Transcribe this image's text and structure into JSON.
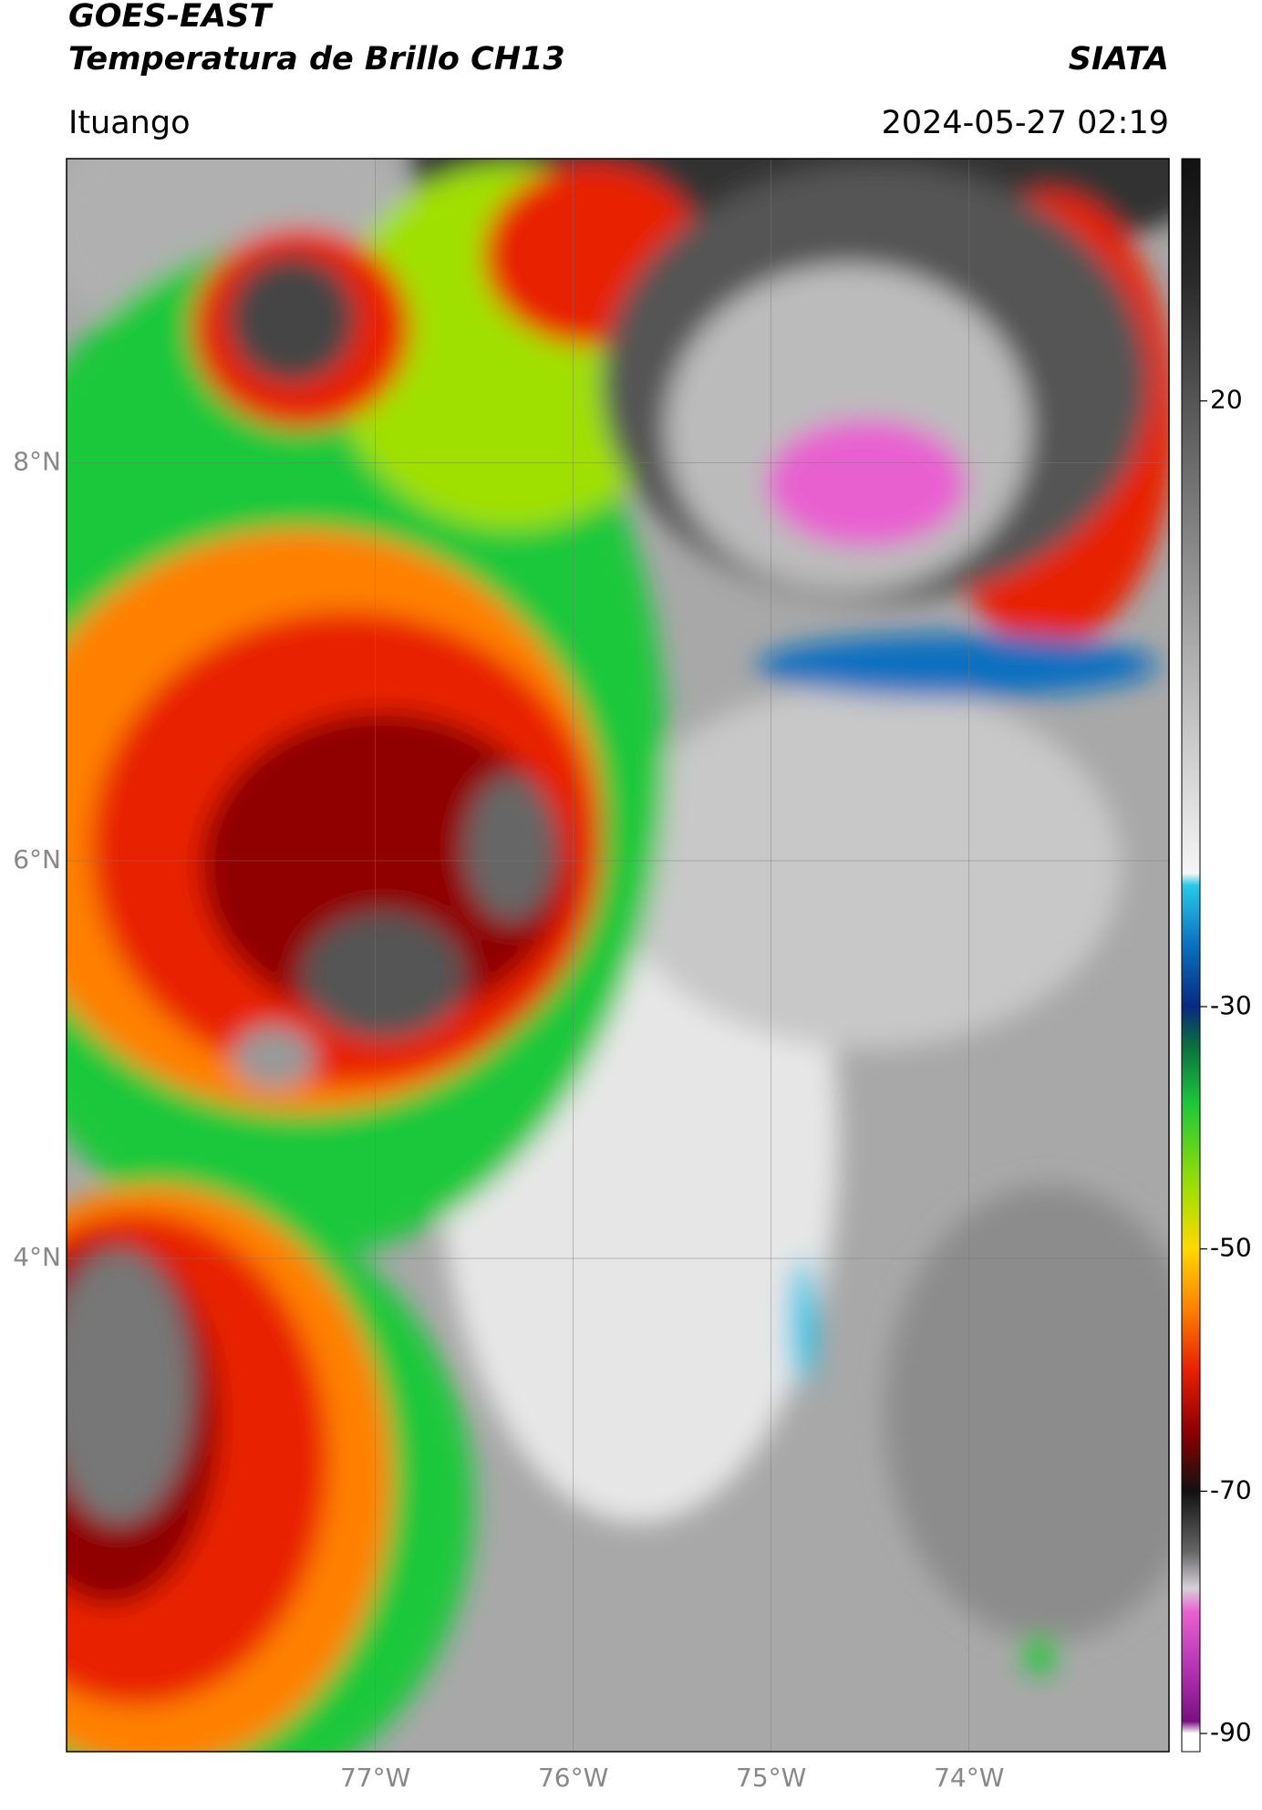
{
  "header": {
    "title": "GOES-EAST",
    "subtitle": "Temperatura de Brillo CH13",
    "brand": "SIATA",
    "location": "Ituango",
    "timestamp": "2024-05-27 02:19"
  },
  "map": {
    "lon_range": [
      -78.56,
      -72.99
    ],
    "lat_range": [
      1.52,
      9.53
    ],
    "lon_ticks": [
      {
        "value": -77,
        "label": "77°W"
      },
      {
        "value": -76,
        "label": "76°W"
      },
      {
        "value": -75,
        "label": "75°W"
      },
      {
        "value": -74,
        "label": "74°W"
      }
    ],
    "lat_ticks": [
      {
        "value": 8,
        "label": "8°N"
      },
      {
        "value": 6,
        "label": "6°N"
      },
      {
        "value": 4,
        "label": "4°N"
      }
    ],
    "grid": true
  },
  "colorbar": {
    "range": [
      40,
      -91.5
    ],
    "ticks": [
      20,
      -30,
      -50,
      -70,
      -90
    ],
    "stops": [
      {
        "value": 40,
        "color": "#111111"
      },
      {
        "value": 30,
        "color": "#2a2a2a"
      },
      {
        "value": 20,
        "color": "#555555"
      },
      {
        "value": 0,
        "color": "#aaaaaa"
      },
      {
        "value": -19,
        "color": "#f5f5f5"
      },
      {
        "value": -20,
        "color": "#29c8e8"
      },
      {
        "value": -25,
        "color": "#0a70c0"
      },
      {
        "value": -30,
        "color": "#062a80"
      },
      {
        "value": -33,
        "color": "#0a6a40"
      },
      {
        "value": -38,
        "color": "#1cc83a"
      },
      {
        "value": -45,
        "color": "#a0e000"
      },
      {
        "value": -50,
        "color": "#ffd800"
      },
      {
        "value": -55,
        "color": "#ff8000"
      },
      {
        "value": -60,
        "color": "#e82000"
      },
      {
        "value": -65,
        "color": "#900000"
      },
      {
        "value": -70,
        "color": "#111111"
      },
      {
        "value": -75,
        "color": "#666666"
      },
      {
        "value": -78,
        "color": "#d8d0d8"
      },
      {
        "value": -80,
        "color": "#e860d0"
      },
      {
        "value": -85,
        "color": "#b030b0"
      },
      {
        "value": -89,
        "color": "#7a1080"
      },
      {
        "value": -90,
        "color": "#ffffff"
      },
      {
        "value": -91.5,
        "color": "#ffffff"
      }
    ]
  }
}
